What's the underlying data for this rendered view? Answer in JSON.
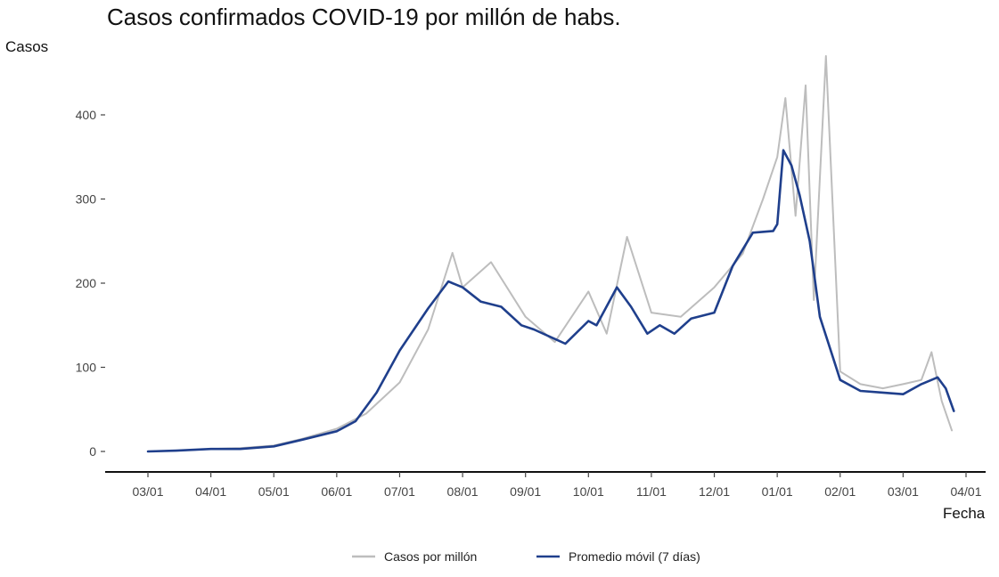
{
  "colors": {
    "raw": "#bdbdbd",
    "avg": "#1f3f8c",
    "axis": "#111111",
    "background": "#ffffff"
  },
  "chart_data": {
    "type": "line",
    "title": "Casos confirmados COVID-19 por millón de habs.",
    "xlabel": "Fecha",
    "ylabel": "Casos",
    "ylim": [
      0,
      470
    ],
    "yticks": [
      0,
      100,
      200,
      300,
      400
    ],
    "xticks": [
      "03/01",
      "04/01",
      "05/01",
      "06/01",
      "07/01",
      "08/01",
      "09/01",
      "10/01",
      "11/01",
      "12/01",
      "01/01",
      "02/01",
      "03/01",
      "04/01"
    ],
    "grid": false,
    "legend_position": "bottom",
    "series": [
      {
        "name": "Casos por millón",
        "color": "#bdbdbd",
        "x": [
          "03/01",
          "03/15",
          "04/01",
          "04/15",
          "05/01",
          "05/15",
          "06/01",
          "06/15",
          "07/01",
          "07/15",
          "07/27",
          "08/01",
          "08/15",
          "09/01",
          "09/15",
          "10/01",
          "10/10",
          "10/20",
          "11/01",
          "11/15",
          "12/01",
          "12/15",
          "12/25",
          "01/01",
          "01/05",
          "01/10",
          "01/15",
          "01/19",
          "01/25",
          "02/01",
          "02/10",
          "02/20",
          "03/01",
          "03/10",
          "03/15",
          "03/20",
          "03/25"
        ],
        "values": [
          0,
          1,
          3,
          4,
          7,
          15,
          27,
          45,
          82,
          145,
          236,
          195,
          225,
          160,
          130,
          190,
          140,
          255,
          165,
          160,
          195,
          235,
          300,
          350,
          420,
          280,
          435,
          180,
          470,
          95,
          80,
          75,
          80,
          85,
          118,
          60,
          25
        ]
      },
      {
        "name": "Promedio móvil (7 días)",
        "color": "#1f3f8c",
        "x": [
          "03/01",
          "03/15",
          "04/01",
          "04/15",
          "05/01",
          "05/15",
          "06/01",
          "06/10",
          "06/20",
          "07/01",
          "07/15",
          "07/25",
          "08/01",
          "08/10",
          "08/20",
          "08/30",
          "09/05",
          "09/20",
          "10/01",
          "10/05",
          "10/15",
          "10/22",
          "10/30",
          "11/05",
          "11/12",
          "11/20",
          "12/01",
          "12/10",
          "12/20",
          "12/30",
          "01/01",
          "01/04",
          "01/08",
          "01/12",
          "01/17",
          "01/22",
          "01/28",
          "02/01",
          "02/10",
          "02/20",
          "03/01",
          "03/10",
          "03/18",
          "03/22",
          "03/26"
        ],
        "values": [
          0,
          1,
          3,
          3,
          6,
          14,
          24,
          36,
          70,
          120,
          170,
          202,
          195,
          178,
          172,
          150,
          145,
          128,
          155,
          150,
          195,
          172,
          140,
          150,
          140,
          158,
          165,
          220,
          260,
          262,
          270,
          358,
          340,
          305,
          250,
          160,
          115,
          85,
          72,
          70,
          68,
          80,
          88,
          75,
          48
        ]
      }
    ]
  }
}
